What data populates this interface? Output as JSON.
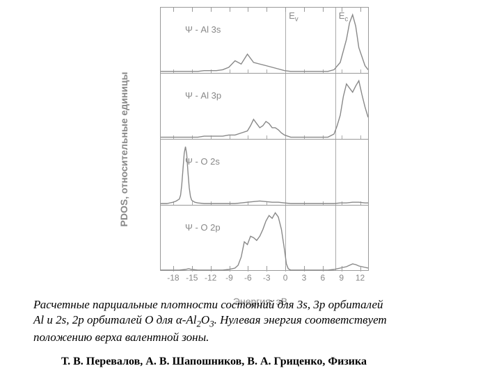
{
  "chart": {
    "type": "multi-panel-line",
    "ylabel": "PDOS, относительные единицы",
    "xlabel": "Энергия, эВ",
    "xlim": [
      -20,
      13.5
    ],
    "xtick_step": 3,
    "xticks": [
      -18,
      -15,
      -12,
      -9,
      -6,
      -3,
      0,
      3,
      6,
      9,
      12
    ],
    "line_color": "#888888",
    "axis_color": "#999999",
    "label_color": "#888888",
    "label_fontsize": 13,
    "axis_fontsize": 14,
    "background_color": "#ffffff",
    "vlines": [
      {
        "x": 0,
        "label": "E",
        "sub": "v"
      },
      {
        "x": 8,
        "label": "E",
        "sub": "c"
      }
    ],
    "panels": [
      {
        "label": "Ψ - Al 3s",
        "data": [
          [
            -20,
            1
          ],
          [
            -19,
            1
          ],
          [
            -18,
            1
          ],
          [
            -17,
            1
          ],
          [
            -16,
            1
          ],
          [
            -15,
            1
          ],
          [
            -14,
            1
          ],
          [
            -13,
            2
          ],
          [
            -12,
            2
          ],
          [
            -11,
            2
          ],
          [
            -10,
            3
          ],
          [
            -9,
            6
          ],
          [
            -8,
            14
          ],
          [
            -7,
            10
          ],
          [
            -6,
            22
          ],
          [
            -5,
            12
          ],
          [
            -4,
            10
          ],
          [
            -3,
            8
          ],
          [
            -2,
            6
          ],
          [
            -1,
            4
          ],
          [
            0,
            2
          ],
          [
            1,
            1
          ],
          [
            2,
            1
          ],
          [
            3,
            1
          ],
          [
            4,
            1
          ],
          [
            5,
            1
          ],
          [
            6,
            1
          ],
          [
            7,
            1
          ],
          [
            8,
            3
          ],
          [
            9,
            12
          ],
          [
            10,
            40
          ],
          [
            10.5,
            60
          ],
          [
            11,
            70
          ],
          [
            11.5,
            56
          ],
          [
            12,
            30
          ],
          [
            13,
            8
          ],
          [
            13.5,
            3
          ]
        ]
      },
      {
        "label": "Ψ - Al 3p",
        "data": [
          [
            -20,
            1
          ],
          [
            -19,
            1
          ],
          [
            -18,
            1
          ],
          [
            -17,
            1
          ],
          [
            -16,
            1
          ],
          [
            -15,
            1
          ],
          [
            -14,
            1
          ],
          [
            -13,
            2
          ],
          [
            -12,
            2
          ],
          [
            -11,
            2
          ],
          [
            -10,
            2
          ],
          [
            -9,
            3
          ],
          [
            -8,
            3
          ],
          [
            -7,
            5
          ],
          [
            -6,
            7
          ],
          [
            -5.5,
            12
          ],
          [
            -5,
            18
          ],
          [
            -4.5,
            14
          ],
          [
            -4,
            10
          ],
          [
            -3.5,
            12
          ],
          [
            -3,
            16
          ],
          [
            -2.5,
            14
          ],
          [
            -2,
            10
          ],
          [
            -1.5,
            10
          ],
          [
            -1,
            8
          ],
          [
            -0.5,
            5
          ],
          [
            0,
            3
          ],
          [
            1,
            1
          ],
          [
            2,
            1
          ],
          [
            3,
            1
          ],
          [
            4,
            1
          ],
          [
            5,
            1
          ],
          [
            6,
            1
          ],
          [
            7,
            1
          ],
          [
            8,
            4
          ],
          [
            8.5,
            12
          ],
          [
            9,
            22
          ],
          [
            9.5,
            40
          ],
          [
            10,
            52
          ],
          [
            10.5,
            48
          ],
          [
            11,
            44
          ],
          [
            11.5,
            50
          ],
          [
            12,
            55
          ],
          [
            12.5,
            42
          ],
          [
            13,
            30
          ],
          [
            13.5,
            20
          ]
        ]
      },
      {
        "label": "Ψ - O 2s",
        "data": [
          [
            -20,
            1
          ],
          [
            -19,
            1
          ],
          [
            -18.5,
            2
          ],
          [
            -18,
            3
          ],
          [
            -17.5,
            5
          ],
          [
            -17,
            8
          ],
          [
            -16.8,
            14
          ],
          [
            -16.6,
            30
          ],
          [
            -16.4,
            55
          ],
          [
            -16.2,
            80
          ],
          [
            -16,
            90
          ],
          [
            -15.8,
            78
          ],
          [
            -15.6,
            50
          ],
          [
            -15.4,
            26
          ],
          [
            -15.2,
            12
          ],
          [
            -15,
            6
          ],
          [
            -14.5,
            3
          ],
          [
            -14,
            2
          ],
          [
            -13,
            1
          ],
          [
            -12,
            1
          ],
          [
            -11,
            1
          ],
          [
            -10,
            1
          ],
          [
            -9,
            1
          ],
          [
            -8,
            1
          ],
          [
            -7,
            2
          ],
          [
            -6,
            3
          ],
          [
            -5,
            4
          ],
          [
            -4,
            5
          ],
          [
            -3,
            4
          ],
          [
            -2,
            3
          ],
          [
            -1,
            3
          ],
          [
            0,
            2
          ],
          [
            1,
            1
          ],
          [
            2,
            1
          ],
          [
            3,
            1
          ],
          [
            4,
            1
          ],
          [
            5,
            1
          ],
          [
            6,
            1
          ],
          [
            7,
            1
          ],
          [
            8,
            1
          ],
          [
            9,
            2
          ],
          [
            10,
            2
          ],
          [
            11,
            3
          ],
          [
            12,
            3
          ],
          [
            13,
            2
          ],
          [
            13.5,
            2
          ]
        ]
      },
      {
        "label": "Ψ - O 2p",
        "data": [
          [
            -20,
            1
          ],
          [
            -19,
            1
          ],
          [
            -18,
            1
          ],
          [
            -17,
            1
          ],
          [
            -16,
            2
          ],
          [
            -15.5,
            3
          ],
          [
            -15,
            2
          ],
          [
            -14,
            1
          ],
          [
            -13,
            1
          ],
          [
            -12,
            1
          ],
          [
            -11,
            1
          ],
          [
            -10,
            1
          ],
          [
            -9,
            2
          ],
          [
            -8,
            4
          ],
          [
            -7.5,
            8
          ],
          [
            -7,
            20
          ],
          [
            -6.5,
            42
          ],
          [
            -6,
            38
          ],
          [
            -5.5,
            50
          ],
          [
            -5,
            48
          ],
          [
            -4.5,
            44
          ],
          [
            -4,
            50
          ],
          [
            -3.5,
            60
          ],
          [
            -3,
            72
          ],
          [
            -2.5,
            80
          ],
          [
            -2,
            76
          ],
          [
            -1.5,
            84
          ],
          [
            -1,
            78
          ],
          [
            -0.5,
            60
          ],
          [
            0,
            30
          ],
          [
            0.3,
            10
          ],
          [
            0.6,
            3
          ],
          [
            1,
            1
          ],
          [
            2,
            1
          ],
          [
            3,
            1
          ],
          [
            4,
            1
          ],
          [
            5,
            1
          ],
          [
            6,
            1
          ],
          [
            7,
            1
          ],
          [
            8,
            2
          ],
          [
            9,
            4
          ],
          [
            10,
            6
          ],
          [
            10.5,
            8
          ],
          [
            11,
            10
          ],
          [
            11.5,
            9
          ],
          [
            12,
            7
          ],
          [
            13,
            5
          ],
          [
            13.5,
            4
          ]
        ]
      }
    ]
  },
  "caption_parts": {
    "l1a": "Расчетные парциальные плотности состояний для 3s, 3p орбиталей",
    "l2a": "Al и 2s, 2p орбиталей О для α-Al",
    "l2b": "2",
    "l2c": "O",
    "l2d": "3",
    "l2e": ". Нулевая энергия соответствует",
    "l3": "положению верха валентной зоны."
  },
  "authors": "Т. В. Перевалов, А. В. Шапошников, В. А. Гриценко, Физика"
}
